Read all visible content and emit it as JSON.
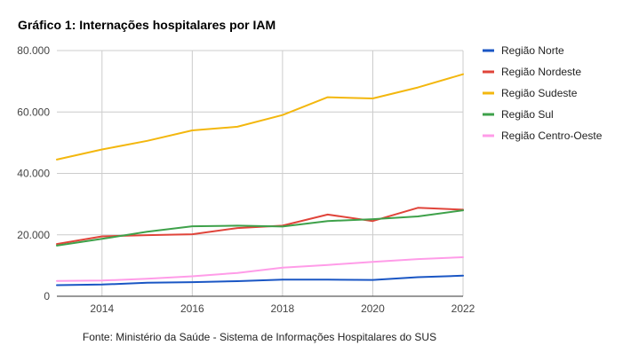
{
  "chart_data": {
    "type": "line",
    "title": "Gráfico 1: Internações hospitalares por IAM",
    "source": "Fonte: Ministério da Saúde - Sistema de Informações Hospitalares do SUS",
    "xlabel": "",
    "ylabel": "",
    "xlim": [
      2013,
      2022
    ],
    "ylim": [
      0,
      80000
    ],
    "x_ticks": [
      2014,
      2016,
      2018,
      2020,
      2022
    ],
    "y_ticks": [
      0,
      20000,
      40000,
      60000,
      80000
    ],
    "y_tick_labels": [
      "0",
      "20.000",
      "40.000",
      "60.000",
      "80.000"
    ],
    "grid": true,
    "legend_position": "right",
    "x": [
      2013,
      2014,
      2015,
      2016,
      2017,
      2018,
      2019,
      2020,
      2021,
      2022
    ],
    "series": [
      {
        "name": "Região Norte",
        "color": "#1a56c4",
        "values": [
          3600,
          3800,
          4400,
          4600,
          4900,
          5400,
          5400,
          5300,
          6200,
          6700
        ]
      },
      {
        "name": "Região Nordeste",
        "color": "#e0443a",
        "values": [
          17000,
          19500,
          19900,
          20200,
          22200,
          23000,
          26600,
          24500,
          28800,
          28200
        ]
      },
      {
        "name": "Região Sudeste",
        "color": "#f3b70e",
        "values": [
          44500,
          47800,
          50600,
          54000,
          55200,
          59000,
          64800,
          64400,
          68000,
          72300
        ]
      },
      {
        "name": "Região Sul",
        "color": "#3ea14a",
        "values": [
          16500,
          18700,
          21000,
          22800,
          23000,
          22700,
          24500,
          25100,
          26000,
          28000
        ]
      },
      {
        "name": "Região Centro-Oeste",
        "color": "#ff9ce8",
        "values": [
          5000,
          5100,
          5700,
          6500,
          7600,
          9300,
          10200,
          11200,
          12100,
          12700
        ]
      }
    ]
  }
}
